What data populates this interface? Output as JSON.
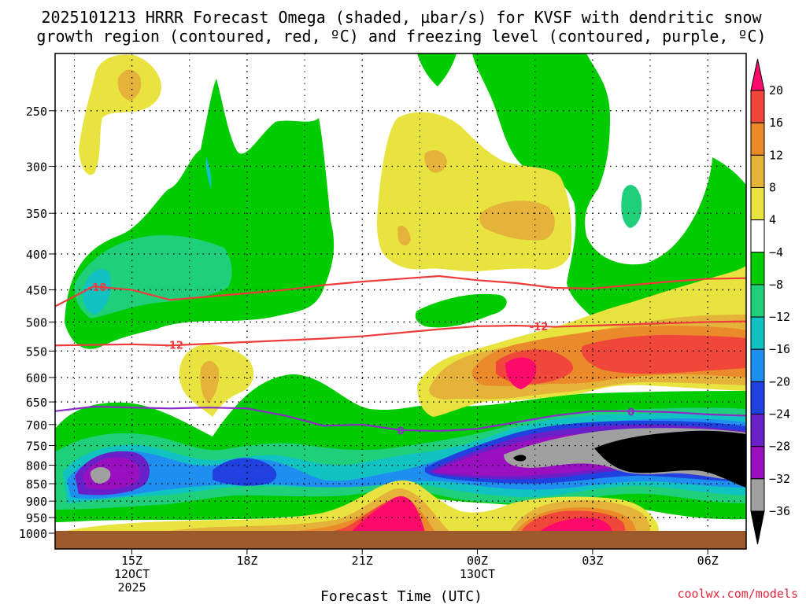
{
  "chart_data": {
    "type": "heatmap",
    "title_line1": "2025101213 HRRR Forecast Omega (shaded, µbar/s) for KVSF with dendritic snow",
    "title_line2": "growth region (contoured, red, ºC) and freezing level (contoured, purple, ºC)",
    "xlabel": "Forecast Time (UTC)",
    "ylabel": "",
    "credit": "coolwx.com/models",
    "x_ticks": [
      {
        "hour": 15,
        "lines": [
          "15Z",
          "12OCT",
          "2025"
        ]
      },
      {
        "hour": 18,
        "lines": [
          "18Z"
        ]
      },
      {
        "hour": 21,
        "lines": [
          "21Z"
        ]
      },
      {
        "hour": 24,
        "lines": [
          "00Z",
          "13OCT"
        ]
      },
      {
        "hour": 27,
        "lines": [
          "03Z"
        ]
      },
      {
        "hour": 30,
        "lines": [
          "06Z"
        ]
      }
    ],
    "xlim": [
      13,
      31
    ],
    "ylim": [
      1000,
      200
    ],
    "y_ticks": [
      250,
      300,
      350,
      400,
      450,
      500,
      550,
      600,
      650,
      700,
      750,
      800,
      850,
      900,
      950,
      1000
    ],
    "colorbar": {
      "labels": [
        "20",
        "16",
        "12",
        "8",
        "4",
        "−4",
        "−8",
        "−12",
        "−16",
        "−20",
        "−24",
        "−28",
        "−32",
        "−36"
      ],
      "colors": [
        "#ff0a6a",
        "#f0473a",
        "#ea8a2a",
        "#e5b23a",
        "#e8e33e",
        "#ffffff",
        "#00cc00",
        "#1fcf7a",
        "#10c2c2",
        "#1e8ff0",
        "#2040e0",
        "#6a20c8",
        "#9a10c0",
        "#a0a0a0",
        "#000000"
      ]
    },
    "contour_labels": {
      "dgz_upper": "-18",
      "dgz_lower_left": "-12",
      "dgz_lower_right": "-12",
      "freezing_mid": "0",
      "freezing_right": "0"
    },
    "dgz_upper_contour": {
      "x": [
        13,
        14,
        15,
        16,
        17,
        18,
        19,
        20,
        21,
        22,
        23,
        24,
        25,
        26,
        27,
        28,
        29,
        30,
        31
      ],
      "y": [
        475,
        445,
        450,
        465,
        460,
        455,
        450,
        443,
        438,
        434,
        430,
        436,
        440,
        447,
        448,
        443,
        438,
        434,
        433
      ]
    },
    "dgz_lower_contour": {
      "x": [
        13,
        14,
        15,
        16,
        17,
        18,
        19,
        20,
        21,
        22,
        23,
        24,
        25,
        26,
        27,
        28,
        29,
        30,
        31
      ],
      "y": [
        540,
        539,
        538,
        540,
        537,
        534,
        531,
        528,
        524,
        518,
        512,
        507,
        506,
        508,
        506,
        504,
        502,
        500,
        499
      ]
    },
    "freezing_level_contour": {
      "x": [
        13,
        14,
        15,
        16,
        17,
        18,
        19,
        20,
        21,
        22,
        23,
        24,
        25,
        26,
        27,
        28,
        29,
        30,
        31
      ],
      "y": [
        670,
        660,
        662,
        664,
        662,
        664,
        680,
        703,
        700,
        713,
        715,
        710,
        695,
        680,
        670,
        670,
        672,
        677,
        680
      ]
    }
  }
}
